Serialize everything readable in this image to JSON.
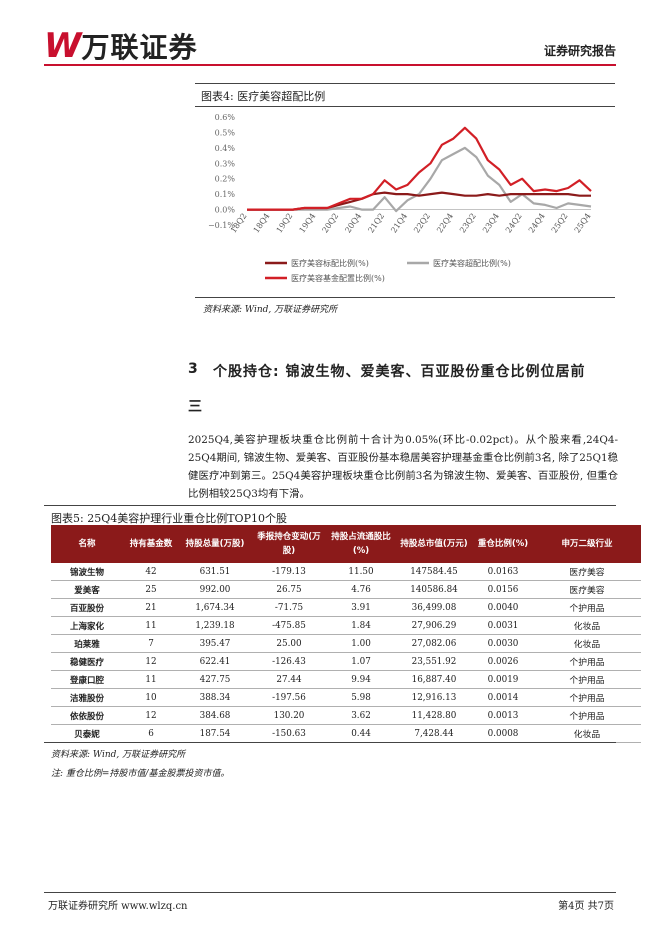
{
  "header": {
    "logo_mark": "W",
    "logo_name": "万联证券",
    "report_type": "证券研究报告"
  },
  "figure4": {
    "title": "图表4:  医疗美容超配比例",
    "source": "资料来源: Wind, 万联证券研究所"
  },
  "chart_data": {
    "type": "line",
    "x": [
      "18Q2",
      "18Q3",
      "18Q4",
      "19Q1",
      "19Q2",
      "19Q3",
      "19Q4",
      "20Q1",
      "20Q2",
      "20Q3",
      "20Q4",
      "21Q1",
      "21Q2",
      "21Q3",
      "21Q4",
      "22Q1",
      "22Q2",
      "22Q3",
      "22Q4",
      "23Q1",
      "23Q2",
      "23Q3",
      "23Q4",
      "24Q1",
      "24Q2",
      "24Q3",
      "24Q4",
      "25Q1",
      "25Q2",
      "25Q3",
      "25Q4"
    ],
    "xtick_labels": [
      "18Q2",
      "18Q4",
      "19Q2",
      "19Q4",
      "20Q2",
      "20Q4",
      "21Q2",
      "21Q4",
      "22Q2",
      "22Q4",
      "23Q2",
      "23Q4",
      "24Q2",
      "24Q4",
      "25Q2",
      "25Q4"
    ],
    "ytick_labels": [
      "−0.1%",
      "0.0%",
      "0.1%",
      "0.2%",
      "0.3%",
      "0.4%",
      "0.5%",
      "0.6%"
    ],
    "ylim": [
      -0.1,
      0.6
    ],
    "series": [
      {
        "name": "医疗美容标配比例(%)",
        "color": "#8b1a1a",
        "values": [
          0.0,
          0.0,
          0.0,
          0.0,
          0.0,
          0.01,
          0.01,
          0.01,
          0.03,
          0.05,
          0.07,
          0.1,
          0.11,
          0.1,
          0.1,
          0.09,
          0.1,
          0.11,
          0.1,
          0.09,
          0.09,
          0.1,
          0.09,
          0.1,
          0.1,
          0.1,
          0.1,
          0.1,
          0.1,
          0.09,
          0.09
        ]
      },
      {
        "name": "医疗美容超配比例(%)",
        "color": "#a8a8a8",
        "values": [
          0.0,
          0.0,
          0.0,
          0.0,
          0.0,
          0.0,
          0.0,
          0.0,
          0.01,
          0.02,
          0.0,
          0.0,
          0.08,
          -0.01,
          0.06,
          0.1,
          0.2,
          0.32,
          0.36,
          0.4,
          0.34,
          0.22,
          0.16,
          0.05,
          0.1,
          0.04,
          0.03,
          0.01,
          0.04,
          0.03,
          0.02
        ]
      },
      {
        "name": "医疗美容基金配置比例(%)",
        "color": "#d21f26",
        "values": [
          0.0,
          0.0,
          0.0,
          0.0,
          0.0,
          0.01,
          0.01,
          0.01,
          0.04,
          0.07,
          0.07,
          0.1,
          0.19,
          0.13,
          0.16,
          0.24,
          0.3,
          0.42,
          0.46,
          0.53,
          0.46,
          0.32,
          0.26,
          0.16,
          0.2,
          0.12,
          0.13,
          0.12,
          0.14,
          0.19,
          0.12
        ]
      }
    ],
    "legend_position": "bottom"
  },
  "section": {
    "number": "3",
    "title": "个股持仓: 锦波生物、爱美客、百亚股份重仓比例位居前",
    "title_cont": "三",
    "paragraph": "2025Q4,美容护理板块重仓比例前十合计为0.05%(环比-0.02pct)。从个股来看,24Q4-25Q4期间, 锦波生物、爱美客、百亚股份基本稳居美容护理基金重仓比例前3名, 除了25Q1稳健医疗冲到第三。25Q4美容护理板块重仓比例前3名为锦波生物、爱美客、百亚股份, 但重仓比例相较25Q3均有下滑。"
  },
  "figure5": {
    "title": "图表5:  25Q4美容护理行业重仓比例TOP10个股",
    "columns": [
      "名称",
      "持有基金数",
      "持股总量(万股)",
      "季报持仓变动(万股)",
      "持股占流通股比(%)",
      "持股总市值(万元)",
      "重仓比例(%)",
      "申万二级行业"
    ],
    "rows": [
      [
        "锦波生物",
        "42",
        "631.51",
        "-179.13",
        "11.50",
        "147584.45",
        "0.0163",
        "医疗美容"
      ],
      [
        "爱美客",
        "25",
        "992.00",
        "26.75",
        "4.76",
        "140586.84",
        "0.0156",
        "医疗美容"
      ],
      [
        "百亚股份",
        "21",
        "1,674.34",
        "-71.75",
        "3.91",
        "36,499.08",
        "0.0040",
        "个护用品"
      ],
      [
        "上海家化",
        "11",
        "1,239.18",
        "-475.85",
        "1.84",
        "27,906.29",
        "0.0031",
        "化妆品"
      ],
      [
        "珀莱雅",
        "7",
        "395.47",
        "25.00",
        "1.00",
        "27,082.06",
        "0.0030",
        "化妆品"
      ],
      [
        "稳健医疗",
        "12",
        "622.41",
        "-126.43",
        "1.07",
        "23,551.92",
        "0.0026",
        "个护用品"
      ],
      [
        "登康口腔",
        "11",
        "427.75",
        "27.44",
        "9.94",
        "16,887.40",
        "0.0019",
        "个护用品"
      ],
      [
        "洁雅股份",
        "10",
        "388.34",
        "-197.56",
        "5.98",
        "12,916.13",
        "0.0014",
        "个护用品"
      ],
      [
        "依依股份",
        "12",
        "384.68",
        "130.20",
        "3.62",
        "11,428.80",
        "0.0013",
        "个护用品"
      ],
      [
        "贝泰妮",
        "6",
        "187.54",
        "-150.63",
        "0.44",
        "7,428.44",
        "0.0008",
        "化妆品"
      ]
    ],
    "source": "资料来源: Wind, 万联证券研究所",
    "note": "注: 重仓比例=持股市值/基金股票投资市值。"
  },
  "footer": {
    "left": "万联证券研究所  www.wlzq.cn",
    "right": "第4页 共7页"
  },
  "colors": {
    "brand_red": "#c8102e",
    "table_header": "#8b1a1a"
  }
}
